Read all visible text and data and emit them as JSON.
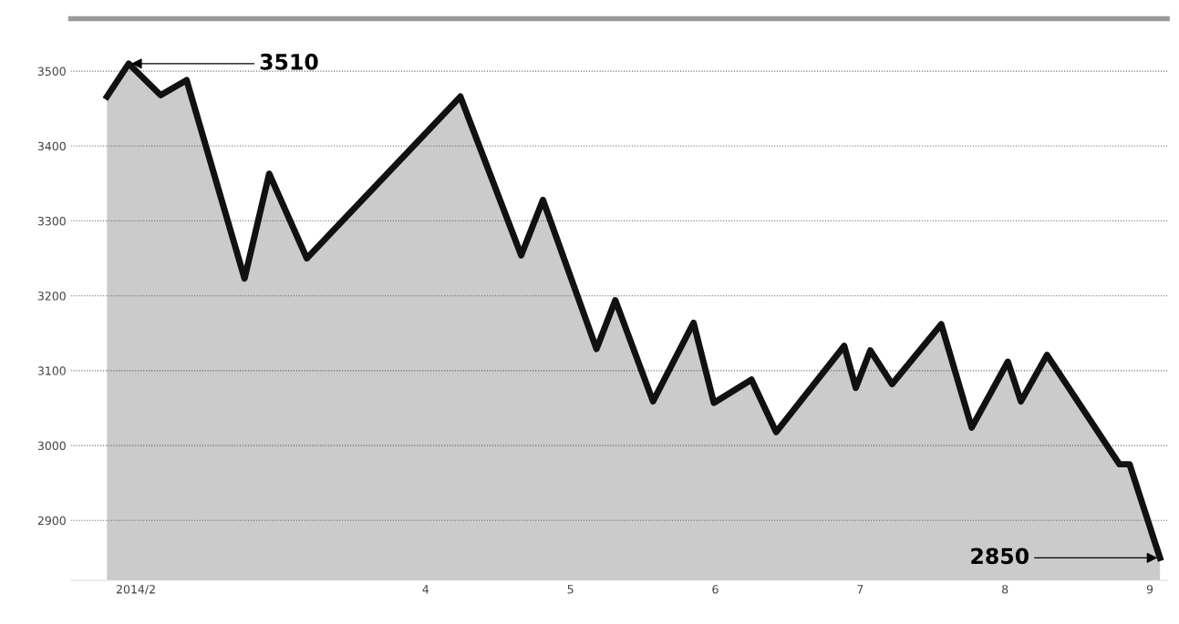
{
  "chart_data": {
    "type": "area",
    "x": [
      1.8,
      1.95,
      2.17,
      2.35,
      2.75,
      2.92,
      3.18,
      4.24,
      4.66,
      4.81,
      5.18,
      5.31,
      5.57,
      5.85,
      5.99,
      6.25,
      6.42,
      6.89,
      6.97,
      7.07,
      7.22,
      7.56,
      7.77,
      8.02,
      8.11,
      8.29,
      8.79,
      8.86,
      9.07
    ],
    "series": [
      {
        "color": "#111111",
        "values": [
          3466,
          3510,
          3468,
          3488,
          3223,
          3363,
          3250,
          3466,
          3254,
          3328,
          3129,
          3194,
          3059,
          3164,
          3057,
          3088,
          3018,
          3133,
          3077,
          3127,
          3082,
          3162,
          3024,
          3112,
          3059,
          3121,
          2975,
          2975,
          2850
        ]
      }
    ],
    "xlim": [
      1.55,
      9.12
    ],
    "xticks": [
      {
        "value": 2,
        "label": "2014/2"
      },
      4,
      5,
      6,
      7,
      8,
      9
    ],
    "ylim": [
      2820,
      3570
    ],
    "yticks": [
      2900,
      3000,
      3100,
      3200,
      3300,
      3400,
      3500
    ],
    "grid": "y",
    "annotations": [
      {
        "text": "3510",
        "x": 1.95,
        "y": 3510
      },
      {
        "text": "2850",
        "x": 9.07,
        "y": 2850
      }
    ]
  }
}
